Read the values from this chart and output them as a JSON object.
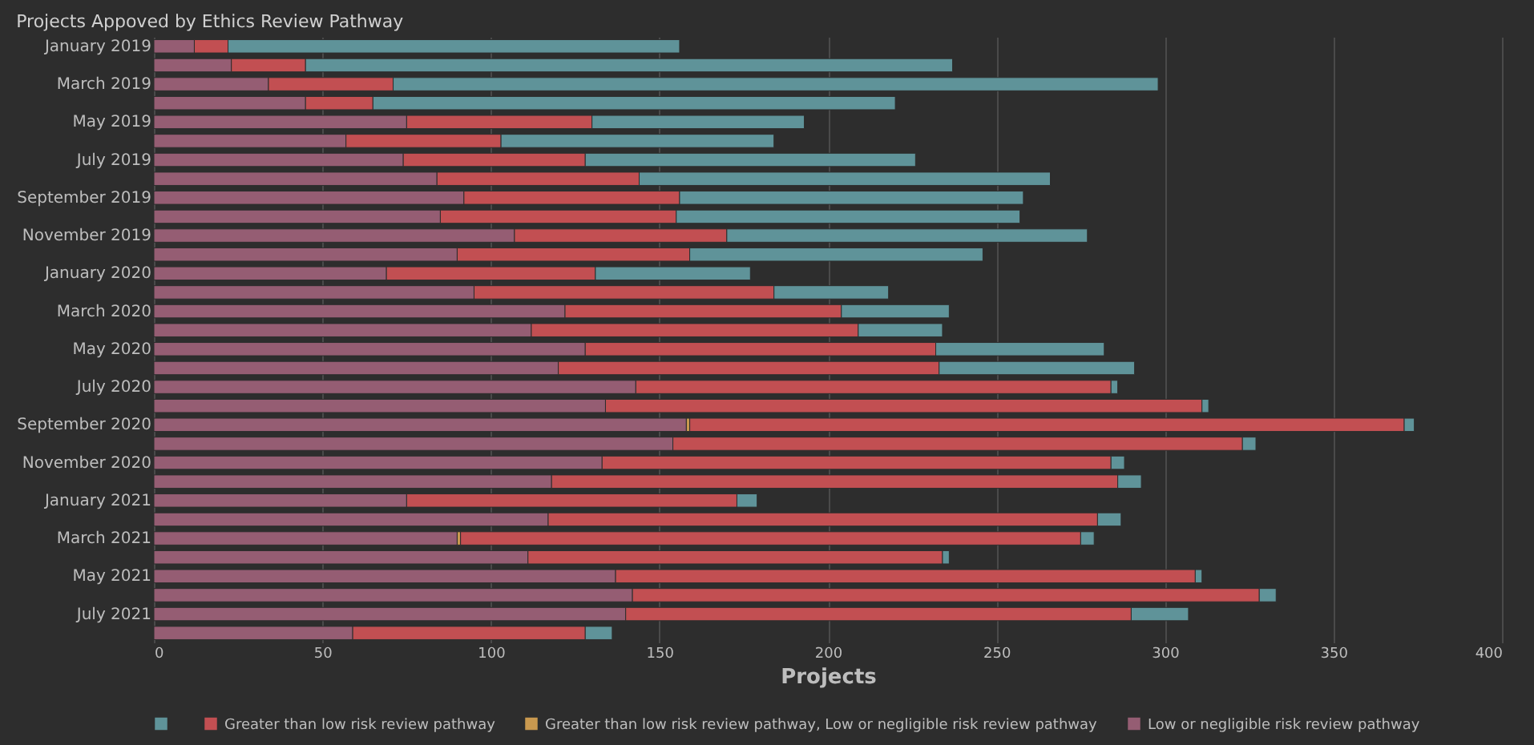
{
  "chart_data": {
    "type": "bar",
    "orientation": "horizontal",
    "stacked": true,
    "title": "Projects Appoved by Ethics Review Pathway",
    "xlabel": "Projects",
    "categories": [
      "January 2019",
      null,
      "March 2019",
      null,
      "May 2019",
      null,
      "July 2019",
      null,
      "September 2019",
      null,
      "November 2019",
      null,
      "January 2020",
      null,
      "March 2020",
      null,
      "May 2020",
      null,
      "July 2020",
      null,
      "September 2020",
      null,
      "November 2020",
      null,
      "January 2021",
      null,
      "March 2021",
      null,
      "May 2021",
      null,
      "July 2021",
      null
    ],
    "series": [
      {
        "name": "Low or negligible risk review pathway",
        "color": "#955d73",
        "values": [
          12,
          23,
          34,
          45,
          75,
          57,
          74,
          84,
          92,
          85,
          107,
          90,
          69,
          95,
          122,
          112,
          128,
          120,
          143,
          134,
          158,
          154,
          133,
          118,
          75,
          117,
          90,
          111,
          137,
          142,
          140,
          59
        ]
      },
      {
        "name": "Greater than low risk review pathway, Low or negligible risk review pathway",
        "color": "#c9994f",
        "values": [
          null,
          null,
          null,
          null,
          null,
          null,
          null,
          null,
          null,
          null,
          null,
          null,
          null,
          null,
          null,
          null,
          null,
          null,
          null,
          null,
          1,
          null,
          null,
          null,
          null,
          null,
          1,
          null,
          null,
          null,
          null,
          null
        ]
      },
      {
        "name": "Greater than low risk review pathway",
        "color": "#c24f52",
        "values": [
          10,
          22,
          37,
          20,
          55,
          46,
          54,
          60,
          64,
          70,
          63,
          69,
          62,
          89,
          82,
          97,
          104,
          113,
          141,
          177,
          212,
          169,
          151,
          168,
          98,
          163,
          184,
          123,
          172,
          186,
          150,
          69
        ]
      },
      {
        "color": "#5f9399",
        "values": [
          134,
          192,
          227,
          155,
          63,
          81,
          98,
          122,
          102,
          102,
          107,
          87,
          46,
          34,
          32,
          25,
          50,
          58,
          2,
          2,
          3,
          4,
          4,
          7,
          6,
          7,
          4,
          2,
          2,
          5,
          17,
          8
        ]
      }
    ],
    "xlim": [
      0,
      400
    ],
    "xticks": [
      0,
      50,
      100,
      150,
      200,
      250,
      300,
      350,
      400
    ],
    "grid": "x",
    "legend": "bottom"
  }
}
